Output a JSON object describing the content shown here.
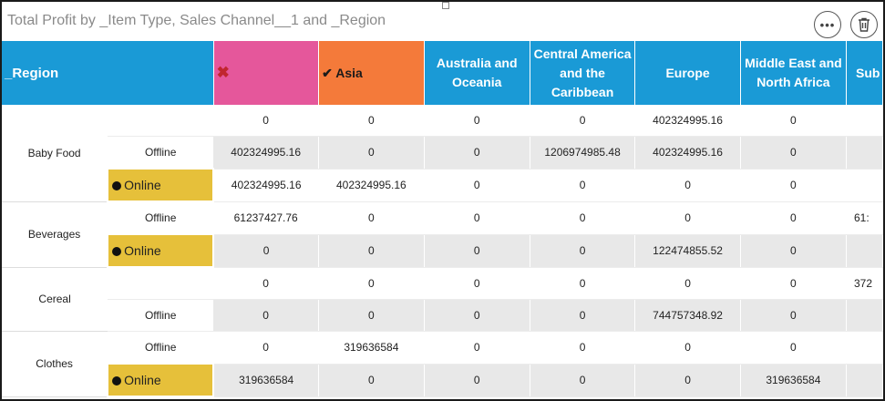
{
  "title": "Total Profit by _Item Type, Sales Channel__1 and _Region",
  "toolbar": {
    "more_label": "•••",
    "delete_label": "🗑"
  },
  "header": {
    "region_label": "_Region",
    "col_excluded_mark": "✖",
    "col_asia_label": "✔ Asia",
    "col_aus_label": "Australia and Oceania",
    "col_cac_label": "Central America and the Caribbean",
    "col_europe_label": "Europe",
    "col_mena_label": "Middle East and North Africa",
    "col_sub_label": "Sub"
  },
  "rows": [
    {
      "item": "Baby Food",
      "channel": "",
      "values": [
        "0",
        "0",
        "0",
        "0",
        "402324995.16",
        "0",
        ""
      ]
    },
    {
      "channel": "Offline",
      "values": [
        "402324995.16",
        "0",
        "0",
        "1206974985.48",
        "402324995.16",
        "0",
        ""
      ]
    },
    {
      "channel": "Online",
      "values": [
        "402324995.16",
        "402324995.16",
        "0",
        "0",
        "0",
        "0",
        ""
      ]
    },
    {
      "item": "Beverages",
      "channel": "Offline",
      "values": [
        "61237427.76",
        "0",
        "0",
        "0",
        "0",
        "0",
        "61:"
      ]
    },
    {
      "channel": "Online",
      "values": [
        "0",
        "0",
        "0",
        "0",
        "122474855.52",
        "0",
        ""
      ]
    },
    {
      "item": "Cereal",
      "channel": "",
      "values": [
        "0",
        "0",
        "0",
        "0",
        "0",
        "0",
        "372"
      ]
    },
    {
      "channel": "Offline",
      "values": [
        "0",
        "0",
        "0",
        "0",
        "744757348.92",
        "0",
        ""
      ]
    },
    {
      "item": "Clothes",
      "channel": "Offline",
      "values": [
        "0",
        "319636584",
        "0",
        "0",
        "0",
        "0",
        ""
      ]
    },
    {
      "channel": "Online",
      "values": [
        "319636584",
        "0",
        "0",
        "0",
        "0",
        "319636584",
        ""
      ]
    }
  ],
  "colors": {
    "header_blue": "#1a9ad6",
    "excluded_pink": "#e5579b",
    "asia_orange": "#f47a3a",
    "online_yellow": "#e6c03a",
    "alt_row_gray": "#e8e8e8"
  }
}
